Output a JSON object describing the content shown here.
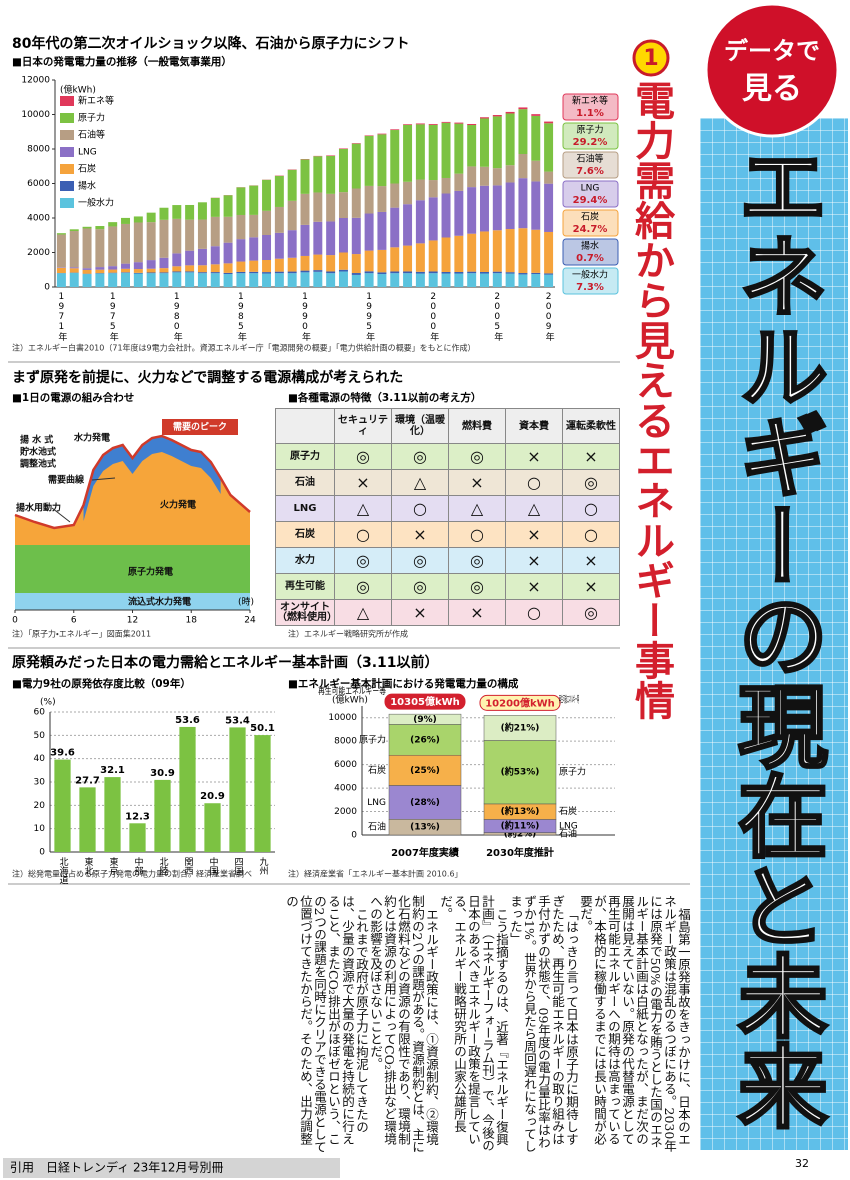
{
  "header": {
    "badge_top": "データで",
    "badge_bottom": "見る",
    "main_title": "エネルギーの現在と未来",
    "number": "1",
    "section_title": "電力需給から見えるエネルギー事情"
  },
  "sections": [
    "80年代の第二次オイルショック以降、石油から原子力にシフト",
    "まず原発を前提に、火力などで調整する電源構成が考えられた",
    "原発頼みだった日本の電力需給とエネルギー基本計画（3.11以前）"
  ],
  "chart_data": [
    {
      "type": "bar",
      "stacked": true,
      "title": "■日本の発電電力量の推移（一般電気事業用）",
      "ylabel": "(億kWh)",
      "categories": [
        "1971年",
        null,
        null,
        null,
        "1975年",
        null,
        null,
        null,
        null,
        "1980年",
        null,
        null,
        null,
        null,
        "1985年",
        null,
        null,
        null,
        null,
        "1990年",
        null,
        null,
        null,
        null,
        "1995年",
        null,
        null,
        null,
        null,
        "2000年",
        null,
        null,
        null,
        null,
        "2005年",
        null,
        null,
        null,
        "2009年"
      ],
      "series": [
        {
          "name": "一般水力",
          "color": "#5bc3de",
          "share_label": "7.3%",
          "values": [
            800,
            820,
            750,
            780,
            800,
            820,
            780,
            800,
            800,
            850,
            850,
            800,
            800,
            750,
            800,
            800,
            780,
            800,
            800,
            850,
            880,
            800,
            900,
            700,
            800,
            750,
            800,
            800,
            780,
            800,
            780,
            780,
            800,
            780,
            800,
            780,
            730,
            750,
            720
          ]
        },
        {
          "name": "揚水",
          "color": "#3b5fb3",
          "share_label": "0.7%",
          "values": [
            10,
            15,
            20,
            25,
            30,
            35,
            40,
            40,
            45,
            50,
            55,
            60,
            65,
            70,
            75,
            80,
            85,
            90,
            95,
            100,
            100,
            100,
            100,
            110,
            110,
            100,
            100,
            100,
            100,
            100,
            90,
            90,
            90,
            90,
            90,
            80,
            80,
            70,
            70
          ]
        },
        {
          "name": "石炭",
          "color": "#f5a33c",
          "share_label": "24.7%",
          "values": [
            300,
            250,
            220,
            200,
            180,
            200,
            220,
            220,
            250,
            300,
            350,
            400,
            450,
            550,
            600,
            650,
            700,
            750,
            800,
            850,
            900,
            950,
            1000,
            1100,
            1200,
            1300,
            1400,
            1500,
            1650,
            1800,
            2000,
            2100,
            2200,
            2350,
            2400,
            2500,
            2600,
            2500,
            2400
          ]
        },
        {
          "name": "LNG",
          "color": "#8b70c6",
          "share_label": "29.4%",
          "values": [
            30,
            60,
            100,
            150,
            200,
            300,
            400,
            500,
            600,
            750,
            850,
            950,
            1050,
            1200,
            1300,
            1350,
            1450,
            1500,
            1600,
            1800,
            1900,
            1950,
            2000,
            2100,
            2150,
            2200,
            2300,
            2400,
            2500,
            2500,
            2550,
            2600,
            2700,
            2650,
            2600,
            2700,
            2900,
            2800,
            2800
          ]
        },
        {
          "name": "石油等",
          "color": "#b79e84",
          "share_label": "7.6%",
          "values": [
            1900,
            2100,
            2300,
            2200,
            2300,
            2300,
            2300,
            2200,
            2200,
            2000,
            1800,
            1700,
            1700,
            1500,
            1400,
            1300,
            1400,
            1500,
            1700,
            1800,
            1700,
            1600,
            1500,
            1700,
            1600,
            1500,
            1400,
            1300,
            1200,
            1000,
            900,
            1000,
            1200,
            1100,
            1000,
            1000,
            1400,
            1200,
            700
          ]
        },
        {
          "name": "原子力",
          "color": "#7cc242",
          "share_label": "29.2%",
          "values": [
            80,
            100,
            100,
            180,
            250,
            350,
            350,
            550,
            700,
            800,
            850,
            1000,
            1100,
            1250,
            1600,
            1700,
            1800,
            1800,
            1800,
            2000,
            2100,
            2200,
            2500,
            2600,
            2900,
            3000,
            3100,
            3300,
            3200,
            3200,
            3200,
            2900,
            2400,
            2800,
            3000,
            3000,
            2600,
            2600,
            2800
          ]
        },
        {
          "name": "新エネ等",
          "color": "#e0385a",
          "share_label": "1.1%",
          "values": [
            0,
            0,
            0,
            0,
            0,
            0,
            0,
            0,
            0,
            0,
            0,
            0,
            10,
            10,
            10,
            10,
            10,
            20,
            20,
            20,
            20,
            30,
            30,
            30,
            30,
            40,
            40,
            40,
            50,
            50,
            50,
            60,
            60,
            70,
            80,
            90,
            100,
            100,
            100
          ]
        }
      ],
      "ylim": [
        0,
        12000
      ],
      "yticks": [
        0,
        2000,
        4000,
        6000,
        8000,
        10000,
        12000
      ],
      "grid": false,
      "note": "注）エネルギー白書2010（71年度は9電力会社計。資源エネルギー庁「電源開発の概要」「電力供給計画の概要」をもとに作成）"
    },
    {
      "type": "area",
      "title": "■1日の電源の組み合わせ",
      "xlim": [
        0,
        24
      ],
      "xticks": [
        0,
        6,
        12,
        18,
        24
      ],
      "xlabel": "(時)",
      "annotations": [
        "需要のピーク",
        "揚 水 式",
        "貯水池式",
        "調整池式",
        "水力発電",
        "需要曲線",
        "火力発電",
        "揚水用動力",
        "原子力発電",
        "流込式水力発電"
      ],
      "note": "注）「原子力・エネルギー」図面集2011"
    },
    {
      "type": "bar",
      "title": "■電力9社の原発依存度比較（09年）",
      "ylabel": "(%)",
      "color": "#7cc242",
      "data_labels": true,
      "categories": [
        "北海道",
        "東北",
        "東京",
        "中部",
        "北陸",
        "関西",
        "中国",
        "四国",
        "九州"
      ],
      "values": [
        39.6,
        27.7,
        32.1,
        12.3,
        30.9,
        53.6,
        20.9,
        53.4,
        50.1
      ],
      "ylim": [
        0,
        60
      ],
      "yticks": [
        0,
        10,
        20,
        30,
        40,
        50,
        60
      ],
      "grid": true,
      "note": "注）総発電量に占める原子力発電の電力量の割合。経済産業省調べ"
    },
    {
      "type": "bar",
      "stacked": true,
      "title": "■エネルギー基本計画における発電電力量の構成",
      "ylabel": "(億kWh)",
      "categories": [
        "2007年度実績",
        "2030年度推計"
      ],
      "totals": [
        10305,
        10200
      ],
      "total_labels": [
        "10305億kWh",
        "10200億kWh"
      ],
      "series": [
        {
          "name": "石油",
          "color": "#c9b89e",
          "values": [
            1340,
            204
          ],
          "value_labels": [
            "(13%)",
            "(約2%)"
          ]
        },
        {
          "name": "LNG",
          "color": "#9b87d0",
          "values": [
            2885,
            1122
          ],
          "value_labels": [
            "(28%)",
            "(約11%)"
          ]
        },
        {
          "name": "石炭",
          "color": "#f6b04a",
          "values": [
            2576,
            1326
          ],
          "value_labels": [
            "(25%)",
            "(約13%)"
          ]
        },
        {
          "name": "原子力",
          "color": "#a9d46b",
          "values": [
            2628,
            5406
          ],
          "value_labels": [
            "(26%)",
            "(約53%)"
          ]
        },
        {
          "name": "再生可能エネルギー等",
          "color": "#dcedc4",
          "values": [
            876,
            2142
          ],
          "value_labels": [
            "(9%)",
            "(約21%)"
          ]
        }
      ],
      "ylim": [
        0,
        11000
      ],
      "yticks": [
        0,
        2000,
        4000,
        6000,
        8000,
        10000
      ],
      "grid": true,
      "note": "注）経済産業省「エネルギー基本計画 2010.6」"
    }
  ],
  "table": {
    "title": "■各種電源の特徴（3.11以前の考え方）",
    "columns": [
      "セキュリティ",
      "環境（温暖化）",
      "燃料費",
      "資本費",
      "運転柔軟性"
    ],
    "rows": [
      {
        "label": "原子力",
        "cells": [
          "◎",
          "◎",
          "◎",
          "×",
          "×"
        ]
      },
      {
        "label": "石油",
        "cells": [
          "×",
          "△",
          "×",
          "○",
          "◎"
        ]
      },
      {
        "label": "LNG",
        "cells": [
          "△",
          "○",
          "△",
          "△",
          "○"
        ]
      },
      {
        "label": "石炭",
        "cells": [
          "○",
          "×",
          "○",
          "×",
          "○"
        ]
      },
      {
        "label": "水力",
        "cells": [
          "◎",
          "◎",
          "◎",
          "×",
          "×"
        ]
      },
      {
        "label": "再生可能",
        "cells": [
          "◎",
          "◎",
          "◎",
          "×",
          "×"
        ]
      },
      {
        "label": "オンサイト（燃料使用）",
        "cells": [
          "△",
          "×",
          "×",
          "○",
          "◎"
        ]
      }
    ],
    "note": "注）エネルギー戦略研究所が作成"
  },
  "article": {
    "paragraphs": [
      "福島第一原発事故をきっかけに、日本のエネルギー政策は混乱のるつぼにある。2030年には原発で50%の電力を賄うとした国のエネルギー基本計画は白紙となったが、まだ次の展開は見えていない。原発の代替電源として再生可能エネルギーへの期待は高まっているが、本格的に稼働するまでには長い時間が必要だ。",
      "「はっきり言って日本は原子力に期待しすぎたため、再生可能エネルギーの取り組みは手付かずの状態で、09年度の電力量比率はわずか1%。世界から見たら周回遅れになってしまった」",
      "こう指摘するのは、近著『エネルギー復興計画』（エネルギーフォーラム刊）で、今後の日本のあるべきエネルギー政策を提言している、エネルギー戦略研究所の山家公雄所長だ。",
      "エネルギー政策には、①資源制約、②環境制約の2つの課題がある。資源制約とは、主に化石燃料などの資源の有限性であり、環境制約とは資源の利用によってCO₂排出など環境への影響を及ぼさないことだ。",
      "これまで政府が原子力に拘泥してきたのは、少量の資源で大量の発電を持続的に行えること、またCO₂排出がほぼゼロという、この2つの課題を同時にクリアできる電源として位置づけてきたからだ。そのため、出力調整の"
    ]
  },
  "footer": {
    "source": "引用　日経トレンディ 23年12月号別冊",
    "page": "32"
  }
}
